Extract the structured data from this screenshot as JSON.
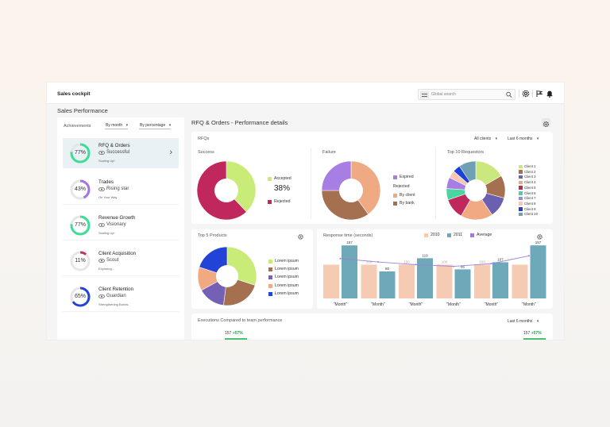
{
  "app": {
    "title": "Sales cockpit"
  },
  "search": {
    "placeholder": "Global search"
  },
  "page": {
    "section_title": "Sales Performance",
    "right_title": "RFQ & Orders - Performance details"
  },
  "achievements": {
    "label": "Achievements",
    "filter_period": "By month",
    "filter_mode": "By percentage",
    "items": [
      {
        "name": "RFQ & Orders",
        "level": "Successful",
        "level_icon": "eye-icon",
        "subtitle": "Scaling Up!",
        "percent": 77,
        "percent_label": "77%",
        "color": "#3ddc97"
      },
      {
        "name": "Trades",
        "level": "Rising star",
        "level_icon": "sprout-icon",
        "subtitle": "On Your Way",
        "percent": 43,
        "percent_label": "43%",
        "color": "#a477e0"
      },
      {
        "name": "Revenue Growth",
        "level": "Visionary",
        "level_icon": "eye-icon",
        "subtitle": "Scaling Up!",
        "percent": 77,
        "percent_label": "77%",
        "color": "#3ddc97"
      },
      {
        "name": "Client Acquisition",
        "level": "Scout",
        "level_icon": "flag-icon",
        "subtitle": "Exploring...",
        "percent": 11,
        "percent_label": "11%",
        "color": "#c4325f"
      },
      {
        "name": "Client Retention",
        "level": "Guardian",
        "level_icon": "shield-icon",
        "subtitle": "Strengthening Bonds.",
        "percent": 65,
        "percent_label": "65%",
        "color": "#2243d6"
      }
    ]
  },
  "rfqs": {
    "label": "RFQs",
    "filter_clients": "All clients",
    "filter_period": "Last 6 months",
    "success": {
      "label": "Success",
      "center_label": "38%",
      "slices": [
        {
          "name": "Accepted",
          "value": 38,
          "color": "#c9ec78"
        },
        {
          "name": "Rejected",
          "value": 62,
          "color": "#c0275c"
        }
      ]
    },
    "failure": {
      "label": "Failure",
      "expired": {
        "name": "Expired",
        "value": 25,
        "color": "#a77fe4"
      },
      "rejected_group": "Rejected",
      "by_client": {
        "name": "By client",
        "value": 40,
        "color": "#efaa84"
      },
      "by_bank": {
        "name": "By bank",
        "value": 35,
        "color": "#a5704f"
      }
    },
    "top_requestors": {
      "label": "Top 10 Requestors",
      "clients": [
        {
          "name": "Client 1",
          "value": 16,
          "color": "#cbe87e"
        },
        {
          "name": "Client 2",
          "value": 12,
          "color": "#a5704f"
        },
        {
          "name": "Client 3",
          "value": 11,
          "color": "#6b5fb0"
        },
        {
          "name": "Client 4",
          "value": 17,
          "color": "#f0a981"
        },
        {
          "name": "Client 5",
          "value": 11,
          "color": "#c0275c"
        },
        {
          "name": "Client 6",
          "value": 6,
          "color": "#4bd59e"
        },
        {
          "name": "Client 7",
          "value": 6,
          "color": "#a77fe4"
        },
        {
          "name": "Client 8",
          "value": 4,
          "color": "#f7c7b2"
        },
        {
          "name": "Client 9",
          "value": 4,
          "color": "#1e3fd8"
        },
        {
          "name": "Client 10",
          "value": 9,
          "color": "#6e9fb2"
        }
      ]
    }
  },
  "top_products": {
    "label": "Top 5 Products",
    "items": [
      {
        "name": "Lorem ipsum",
        "value": 30,
        "color": "#c9ec78"
      },
      {
        "name": "Lorem ipsum",
        "value": 22,
        "color": "#a5704f"
      },
      {
        "name": "Lorem ipsum",
        "value": 15,
        "color": "#7460b5"
      },
      {
        "name": "Lorem ipsum",
        "value": 13,
        "color": "#f0a981"
      },
      {
        "name": "Lorem ipsum",
        "value": 20,
        "color": "#2243d6"
      }
    ]
  },
  "response_time": {
    "label": "Response time (seconds)",
    "chart_data": {
      "type": "bar",
      "categories": [
        "\"Month\"",
        "\"Month\"",
        "\"Month\"",
        "\"Month\"",
        "\"Month\"",
        "\"Month\""
      ],
      "series": [
        {
          "name": "2010",
          "values": [
            100,
            100,
            100,
            100,
            100,
            100
          ],
          "color": "#f6cbb3"
        },
        {
          "name": "2011",
          "values": [
            157,
            80,
            119,
            86,
            107,
            157
          ],
          "color": "#6ea9b9"
        },
        {
          "name": "Average",
          "type": "line",
          "values": [
            118,
            108,
            100,
            95,
            103,
            126
          ],
          "color": "#9f7fd6"
        }
      ],
      "data_labels": [
        "157",
        "80",
        "100",
        "119",
        "100",
        "86",
        "100",
        "107",
        "100",
        "157"
      ],
      "ylim": [
        0,
        170
      ]
    }
  },
  "executions": {
    "label": "Executions Compared to team performance",
    "filter_period": "Last 6 months",
    "left": {
      "value": "157",
      "change": "+57%"
    },
    "right": {
      "value": "157",
      "change": "+57%"
    }
  }
}
